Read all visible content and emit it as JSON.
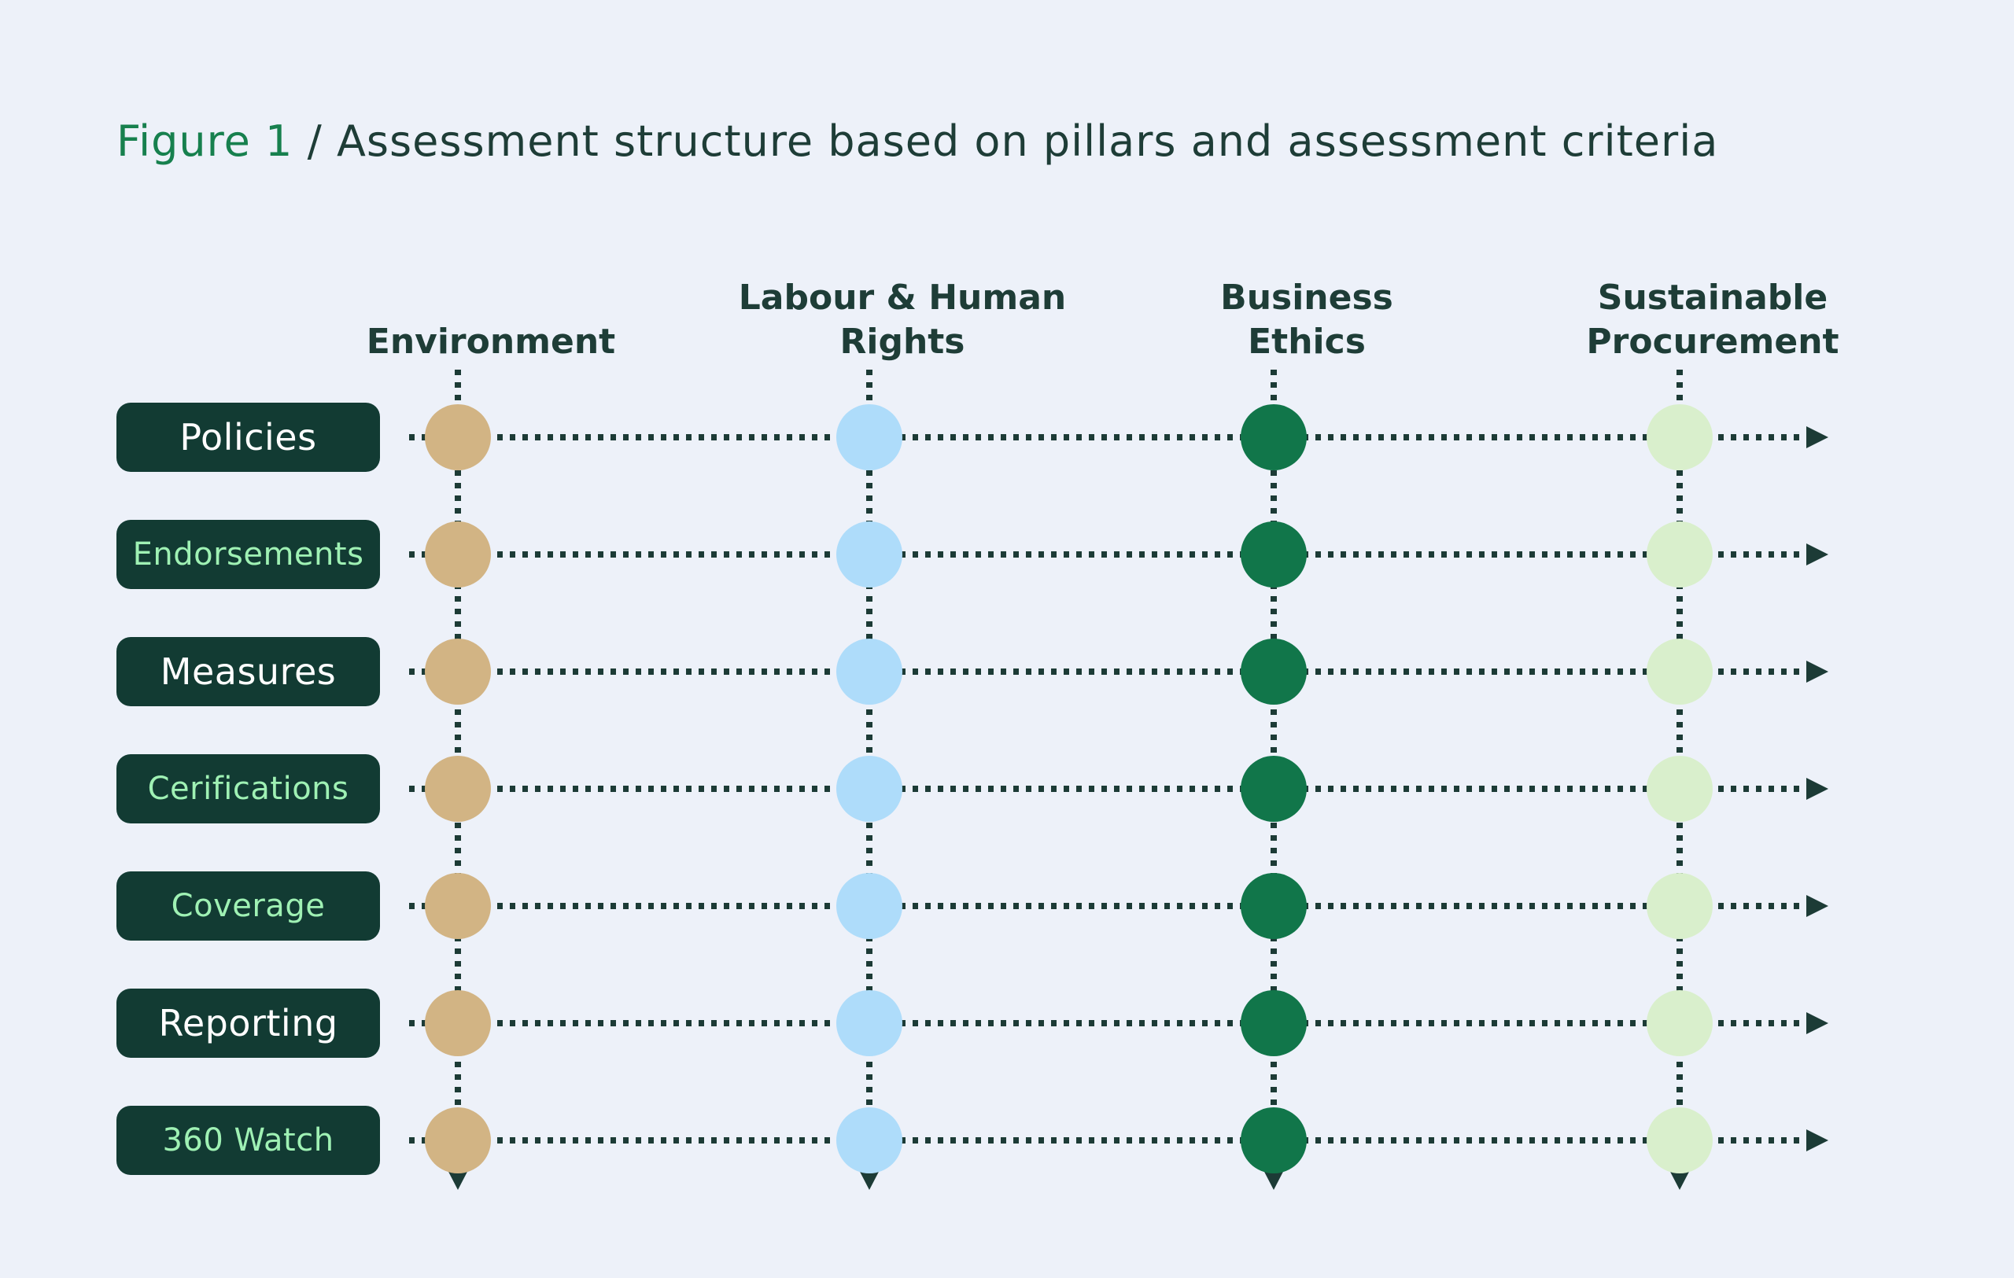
{
  "figure": {
    "label": "Figure 1",
    "separator": " / ",
    "title": "Assessment structure based on pillars and assessment criteria"
  },
  "pillars": [
    {
      "name": "Environment",
      "lines": [
        "Environment"
      ],
      "node_color": "#D2B484"
    },
    {
      "name": "Labour & Human Rights",
      "lines": [
        "Labour & Human",
        "Rights"
      ],
      "node_color": "#AEDCFA"
    },
    {
      "name": "Business Ethics",
      "lines": [
        "Business",
        "Ethics"
      ],
      "node_color": "#11764A"
    },
    {
      "name": "Sustainable Procurement",
      "lines": [
        "Sustainable",
        "Procurement"
      ],
      "node_color": "#D9EFCC"
    }
  ],
  "criteria": [
    {
      "label": "Policies",
      "emphasis": "large",
      "text_color": "#FFFFFF"
    },
    {
      "label": "Endorsements",
      "emphasis": "small",
      "text_color": "#9FF1B4"
    },
    {
      "label": "Measures",
      "emphasis": "large",
      "text_color": "#FFFFFF"
    },
    {
      "label": "Cerifications",
      "emphasis": "small",
      "text_color": "#9FF1B4"
    },
    {
      "label": "Coverage",
      "emphasis": "small",
      "text_color": "#9FF1B4"
    },
    {
      "label": "Reporting",
      "emphasis": "large",
      "text_color": "#FFFFFF"
    },
    {
      "label": "360 Watch",
      "emphasis": "small",
      "text_color": "#9FF1B4"
    }
  ],
  "icons": {
    "row_end": "arrow-right-icon",
    "column_end": "arrow-down-icon"
  },
  "colors": {
    "background": "#EDF1F9",
    "ink": "#1E3D37",
    "title_accent_green": "#17804E",
    "pill_background": "#123B33",
    "pill_text_mint": "#9FF1B4",
    "pill_text_white": "#FFFFFF",
    "dotted_line": "#1C3B36"
  }
}
